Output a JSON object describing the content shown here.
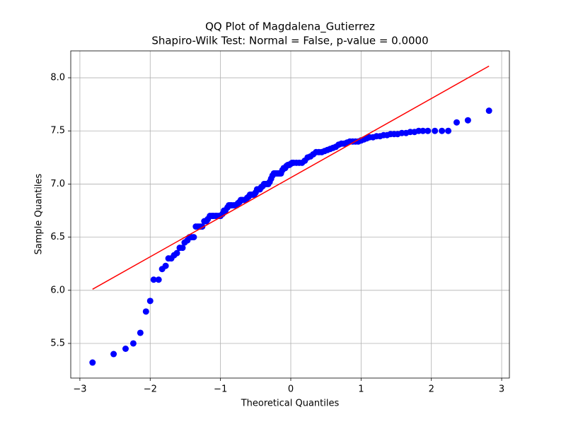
{
  "chart_data": {
    "type": "scatter",
    "title": "QQ Plot of Magdalena_Gutierrez",
    "subtitle": "Shapiro-Wilk Test: Normal = False, p-value = 0.0000",
    "xlabel": "Theoretical Quantiles",
    "ylabel": "Sample Quantiles",
    "xlim": [
      -3.13,
      3.11
    ],
    "ylim": [
      5.174,
      8.253
    ],
    "xticks": [
      {
        "value": -3,
        "label": "−3"
      },
      {
        "value": -2,
        "label": "−2"
      },
      {
        "value": -1,
        "label": "−1"
      },
      0,
      1,
      2,
      3
    ],
    "yticks": [
      5.5,
      {
        "value": 6,
        "label": "6.0"
      },
      6.5,
      {
        "value": 7,
        "label": "7.0"
      },
      7.5,
      {
        "value": 8,
        "label": "8.0"
      }
    ],
    "grid": true,
    "series": [
      {
        "kind": "points",
        "color": "#0000ff",
        "x": [
          -2.82,
          -2.52,
          -2.35,
          -2.24,
          -2.14,
          -2.06,
          -2.0,
          -1.95,
          -1.88,
          -1.83,
          -1.78,
          -1.74,
          -1.7,
          -1.66,
          -1.62,
          -1.58,
          -1.54,
          -1.51,
          -1.47,
          -1.44,
          -1.41,
          -1.38,
          -1.35,
          -1.32,
          -1.29,
          -1.26,
          -1.23,
          -1.2,
          -1.18,
          -1.15,
          -1.12,
          -1.1,
          -1.07,
          -1.05,
          -1.02,
          -1.0,
          -0.97,
          -0.95,
          -0.93,
          -0.9,
          -0.88,
          -0.86,
          -0.84,
          -0.81,
          -0.79,
          -0.77,
          -0.75,
          -0.73,
          -0.71,
          -0.69,
          -0.66,
          -0.64,
          -0.62,
          -0.6,
          -0.58,
          -0.56,
          -0.54,
          -0.52,
          -0.5,
          -0.48,
          -0.46,
          -0.44,
          -0.42,
          -0.4,
          -0.38,
          -0.36,
          -0.34,
          -0.32,
          -0.3,
          -0.28,
          -0.26,
          -0.24,
          -0.22,
          -0.2,
          -0.18,
          -0.16,
          -0.14,
          -0.12,
          -0.1,
          -0.08,
          -0.06,
          -0.04,
          -0.02,
          0.0,
          0.02,
          0.04,
          0.08,
          0.12,
          0.16,
          0.2,
          0.24,
          0.28,
          0.32,
          0.36,
          0.4,
          0.44,
          0.48,
          0.52,
          0.56,
          0.6,
          0.64,
          0.68,
          0.72,
          0.76,
          0.8,
          0.84,
          0.88,
          0.92,
          0.96,
          1.0,
          1.04,
          1.08,
          1.12,
          1.17,
          1.22,
          1.27,
          1.32,
          1.37,
          1.42,
          1.47,
          1.52,
          1.58,
          1.64,
          1.7,
          1.76,
          1.82,
          1.88,
          1.95,
          2.05,
          2.15,
          2.24,
          2.36,
          2.52,
          2.82
        ],
        "values": [
          5.32,
          5.4,
          5.45,
          5.5,
          5.6,
          5.8,
          5.9,
          6.1,
          6.1,
          6.2,
          6.23,
          6.3,
          6.3,
          6.33,
          6.35,
          6.4,
          6.4,
          6.45,
          6.47,
          6.5,
          6.5,
          6.5,
          6.6,
          6.6,
          6.6,
          6.6,
          6.65,
          6.65,
          6.67,
          6.7,
          6.7,
          6.7,
          6.7,
          6.7,
          6.7,
          6.7,
          6.72,
          6.75,
          6.75,
          6.78,
          6.8,
          6.8,
          6.8,
          6.8,
          6.8,
          6.8,
          6.82,
          6.83,
          6.85,
          6.85,
          6.85,
          6.85,
          6.87,
          6.88,
          6.9,
          6.9,
          6.9,
          6.9,
          6.92,
          6.95,
          6.95,
          6.95,
          6.97,
          6.98,
          7.0,
          7.0,
          7.0,
          7.0,
          7.02,
          7.05,
          7.08,
          7.1,
          7.1,
          7.1,
          7.1,
          7.1,
          7.1,
          7.13,
          7.15,
          7.15,
          7.17,
          7.18,
          7.18,
          7.19,
          7.2,
          7.2,
          7.2,
          7.2,
          7.2,
          7.22,
          7.25,
          7.26,
          7.28,
          7.3,
          7.3,
          7.3,
          7.31,
          7.32,
          7.33,
          7.34,
          7.35,
          7.37,
          7.38,
          7.38,
          7.39,
          7.4,
          7.4,
          7.4,
          7.4,
          7.41,
          7.42,
          7.43,
          7.44,
          7.44,
          7.45,
          7.45,
          7.46,
          7.46,
          7.47,
          7.47,
          7.47,
          7.48,
          7.48,
          7.49,
          7.49,
          7.5,
          7.5,
          7.5,
          7.5,
          7.5,
          7.5,
          7.58,
          7.6,
          7.69
        ]
      },
      {
        "kind": "line",
        "color": "#ff0000",
        "x": [
          -2.82,
          2.82
        ],
        "values": [
          6.01,
          8.11
        ]
      }
    ]
  }
}
